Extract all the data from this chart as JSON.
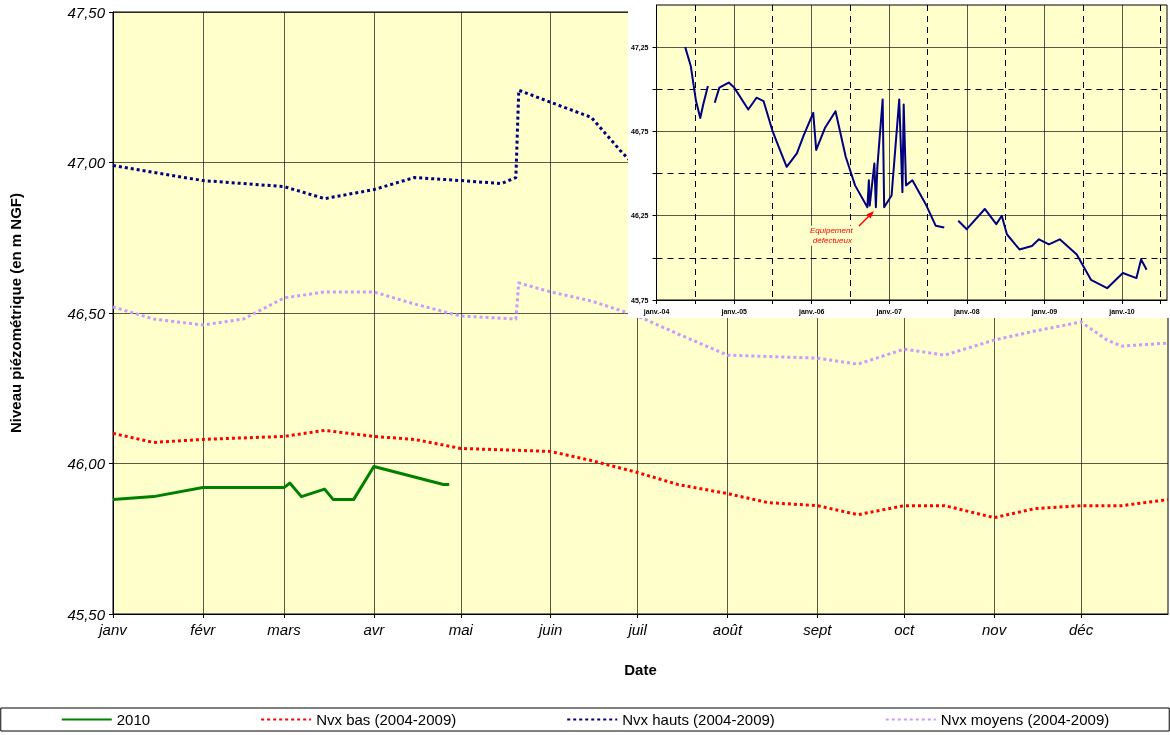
{
  "chart_data": [
    {
      "type": "line",
      "xlabel": "Date",
      "ylabel": "Niveau piézométrique (en m NGF)",
      "xlim": [
        "--01-01",
        "--12-31"
      ],
      "xticks": [
        {
          "value": "--01-01",
          "label": "janv"
        },
        {
          "value": "--02-01",
          "label": "févr"
        },
        {
          "value": "--03-01",
          "label": "mars"
        },
        {
          "value": "--04-01",
          "label": "avr"
        },
        {
          "value": "--05-01",
          "label": "mai"
        },
        {
          "value": "--06-01",
          "label": "juin"
        },
        {
          "value": "--07-01",
          "label": "juil"
        },
        {
          "value": "--08-01",
          "label": "août"
        },
        {
          "value": "--09-01",
          "label": "sept"
        },
        {
          "value": "--10-01",
          "label": "oct"
        },
        {
          "value": "--11-01",
          "label": "nov"
        },
        {
          "value": "--12-01",
          "label": "déc"
        }
      ],
      "ylim": [
        45.5,
        47.5
      ],
      "yticks": [
        {
          "value": 45.5,
          "label": "45,50"
        },
        {
          "value": 46,
          "label": "46,00"
        },
        {
          "value": 46.5,
          "label": "46,50"
        },
        {
          "value": 47,
          "label": "47,00"
        },
        {
          "value": 47.5,
          "label": "47,50"
        }
      ],
      "grid": true,
      "legend": "bottom",
      "marker": "none",
      "series": [
        {
          "name": "2010",
          "color": "#008000",
          "line_style": "solid",
          "x": [
            "--01-01",
            "--01-15",
            "--02-01",
            "--02-15",
            "--03-01",
            "--03-03",
            "--03-07",
            "--03-15",
            "--03-18",
            "--03-25",
            "--04-01",
            "--04-15",
            "--04-25",
            "--04-27"
          ],
          "values": [
            45.88,
            45.89,
            45.92,
            45.92,
            45.92,
            45.935,
            45.89,
            45.915,
            45.88,
            45.88,
            45.99,
            45.955,
            45.93,
            45.93
          ]
        },
        {
          "name": "Nvx bas (2004-2009)",
          "color": "#ff0000",
          "line_style": "dashed",
          "x": [
            "--01-01",
            "--01-15",
            "--02-01",
            "--03-01",
            "--03-15",
            "--04-01",
            "--04-15",
            "--05-01",
            "--06-01",
            "--06-15",
            "--07-01",
            "--07-15",
            "--08-01",
            "--08-15",
            "--09-01",
            "--09-15",
            "--10-01",
            "--10-15",
            "--11-01",
            "--11-15",
            "--12-01",
            "--12-15",
            "--12-31"
          ],
          "values": [
            46.1,
            46.07,
            46.08,
            46.09,
            46.11,
            46.09,
            46.08,
            46.05,
            46.04,
            46.01,
            45.97,
            45.93,
            45.9,
            45.87,
            45.86,
            45.83,
            45.86,
            45.86,
            45.82,
            45.85,
            45.86,
            45.86,
            45.88
          ]
        },
        {
          "name": "Nvx hauts (2004-2009)",
          "color": "#000080",
          "line_style": "dashed",
          "x": [
            "--01-01",
            "--02-01",
            "--03-01",
            "--03-15",
            "--04-01",
            "--04-15",
            "--05-01",
            "--05-15",
            "--05-20",
            "--05-21",
            "--06-01",
            "--06-15",
            "--06-25",
            "--06-28"
          ],
          "values": [
            46.99,
            46.94,
            46.92,
            46.88,
            46.91,
            46.95,
            46.94,
            46.93,
            46.95,
            47.24,
            47.2,
            47.15,
            47.04,
            47.01
          ]
        },
        {
          "name": "Nvx moyens (2004-2009)",
          "color": "#cc99ff",
          "line_style": "dashed",
          "x": [
            "--01-01",
            "--01-15",
            "--02-01",
            "--02-15",
            "--03-01",
            "--03-15",
            "--04-01",
            "--04-15",
            "--05-01",
            "--05-20",
            "--05-21",
            "--06-01",
            "--06-15",
            "--07-01",
            "--07-15",
            "--08-01",
            "--09-01",
            "--09-15",
            "--10-01",
            "--10-15",
            "--11-01",
            "--11-15",
            "--12-01",
            "--12-10",
            "--12-15",
            "--12-31"
          ],
          "values": [
            46.52,
            46.48,
            46.46,
            46.48,
            46.55,
            46.57,
            46.57,
            46.53,
            46.49,
            46.48,
            46.6,
            46.57,
            46.54,
            46.49,
            46.43,
            46.36,
            46.35,
            46.33,
            46.38,
            46.36,
            46.41,
            46.44,
            46.47,
            46.41,
            46.39,
            46.4
          ]
        }
      ]
    },
    {
      "type": "line",
      "color": "#000080",
      "marker": "none",
      "grid": true,
      "xlim": [
        "2004-01-01",
        "2010-08-01"
      ],
      "xticks": [
        {
          "value": "2004-01-01",
          "label": "janv.-04"
        },
        {
          "value": "2004-07-01",
          "label": null
        },
        {
          "value": "2005-01-01",
          "label": "janv.-05"
        },
        {
          "value": "2005-07-01",
          "label": null
        },
        {
          "value": "2006-01-01",
          "label": "janv.-06"
        },
        {
          "value": "2006-07-01",
          "label": null
        },
        {
          "value": "2007-01-01",
          "label": "janv.-07"
        },
        {
          "value": "2007-07-01",
          "label": null
        },
        {
          "value": "2008-01-01",
          "label": "janv.-08"
        },
        {
          "value": "2008-07-01",
          "label": null
        },
        {
          "value": "2009-01-01",
          "label": "janv.-09"
        },
        {
          "value": "2009-07-01",
          "label": null
        },
        {
          "value": "2010-01-01",
          "label": "janv.-10"
        },
        {
          "value": "2010-07-01",
          "label": null
        }
      ],
      "ylim": [
        45.75,
        47.5
      ],
      "yticks": [
        {
          "value": 45.75,
          "label": "45,75"
        },
        {
          "value": 46,
          "label": null
        },
        {
          "value": 46.25,
          "label": "46,25"
        },
        {
          "value": 46.5,
          "label": null
        },
        {
          "value": 46.75,
          "label": "46,75"
        },
        {
          "value": 47,
          "label": null
        },
        {
          "value": 47.25,
          "label": "47,25"
        }
      ],
      "annotations": [
        {
          "text": "Equipement défectueux",
          "x": "2006-10-23",
          "y": 46.28
        }
      ],
      "x": [
        "2004-05-15",
        "2004-06-10",
        "2004-07-05",
        "2004-07-25",
        "2004-08-08",
        "2004-08-30",
        "2004-09-15",
        "2004-10-01",
        "2004-10-23",
        "2004-12-06",
        "2005-01-01",
        "2005-03-08",
        "2005-04-16",
        "2005-05-19",
        "2005-07-01",
        "2005-08-04",
        "2005-09-05",
        "2005-10-23",
        "2005-11-25",
        "2006-01-08",
        "2006-01-22",
        "2006-03-04",
        "2006-04-23",
        "2006-06-10",
        "2006-07-24",
        "2006-09-20",
        "2006-09-27",
        "2006-10-01",
        "2006-10-23",
        "2006-10-30",
        "2006-11-06",
        "2006-12-01",
        "2006-12-08",
        "2007-01-12",
        "2007-02-17",
        "2007-03-04",
        "2007-03-10",
        "2007-03-21",
        "2007-04-20",
        "2007-06-25",
        "2007-08-08",
        "2007-09-17",
        "2007-10-20",
        "2007-11-22",
        "2008-01-01",
        "2008-03-26",
        "2008-05-19",
        "2008-06-14",
        "2008-07-08",
        "2008-09-05",
        "2008-11-03",
        "2008-12-06",
        "2009-01-22",
        "2009-03-14",
        "2009-06-02",
        "2009-08-08",
        "2009-10-23",
        "2010-01-05",
        "2010-03-10",
        "2010-04-01",
        "2010-04-27"
      ],
      "values": [
        47.25,
        47.14,
        46.93,
        46.83,
        46.91,
        47.02,
        null,
        46.92,
        47.01,
        47.04,
        47.01,
        46.88,
        46.95,
        46.93,
        46.75,
        46.64,
        46.54,
        46.62,
        46.73,
        46.86,
        46.64,
        46.77,
        46.87,
        46.6,
        46.43,
        46.3,
        46.46,
        46.31,
        46.56,
        46.3,
        46.54,
        46.94,
        46.3,
        46.37,
        46.94,
        46.39,
        46.91,
        46.43,
        46.46,
        46.31,
        46.19,
        46.18,
        null,
        46.22,
        46.17,
        46.29,
        46.2,
        46.25,
        46.14,
        46.05,
        46.07,
        46.11,
        46.08,
        46.11,
        46.02,
        45.87,
        45.82,
        45.91,
        45.88,
        45.99,
        45.93
      ]
    }
  ]
}
